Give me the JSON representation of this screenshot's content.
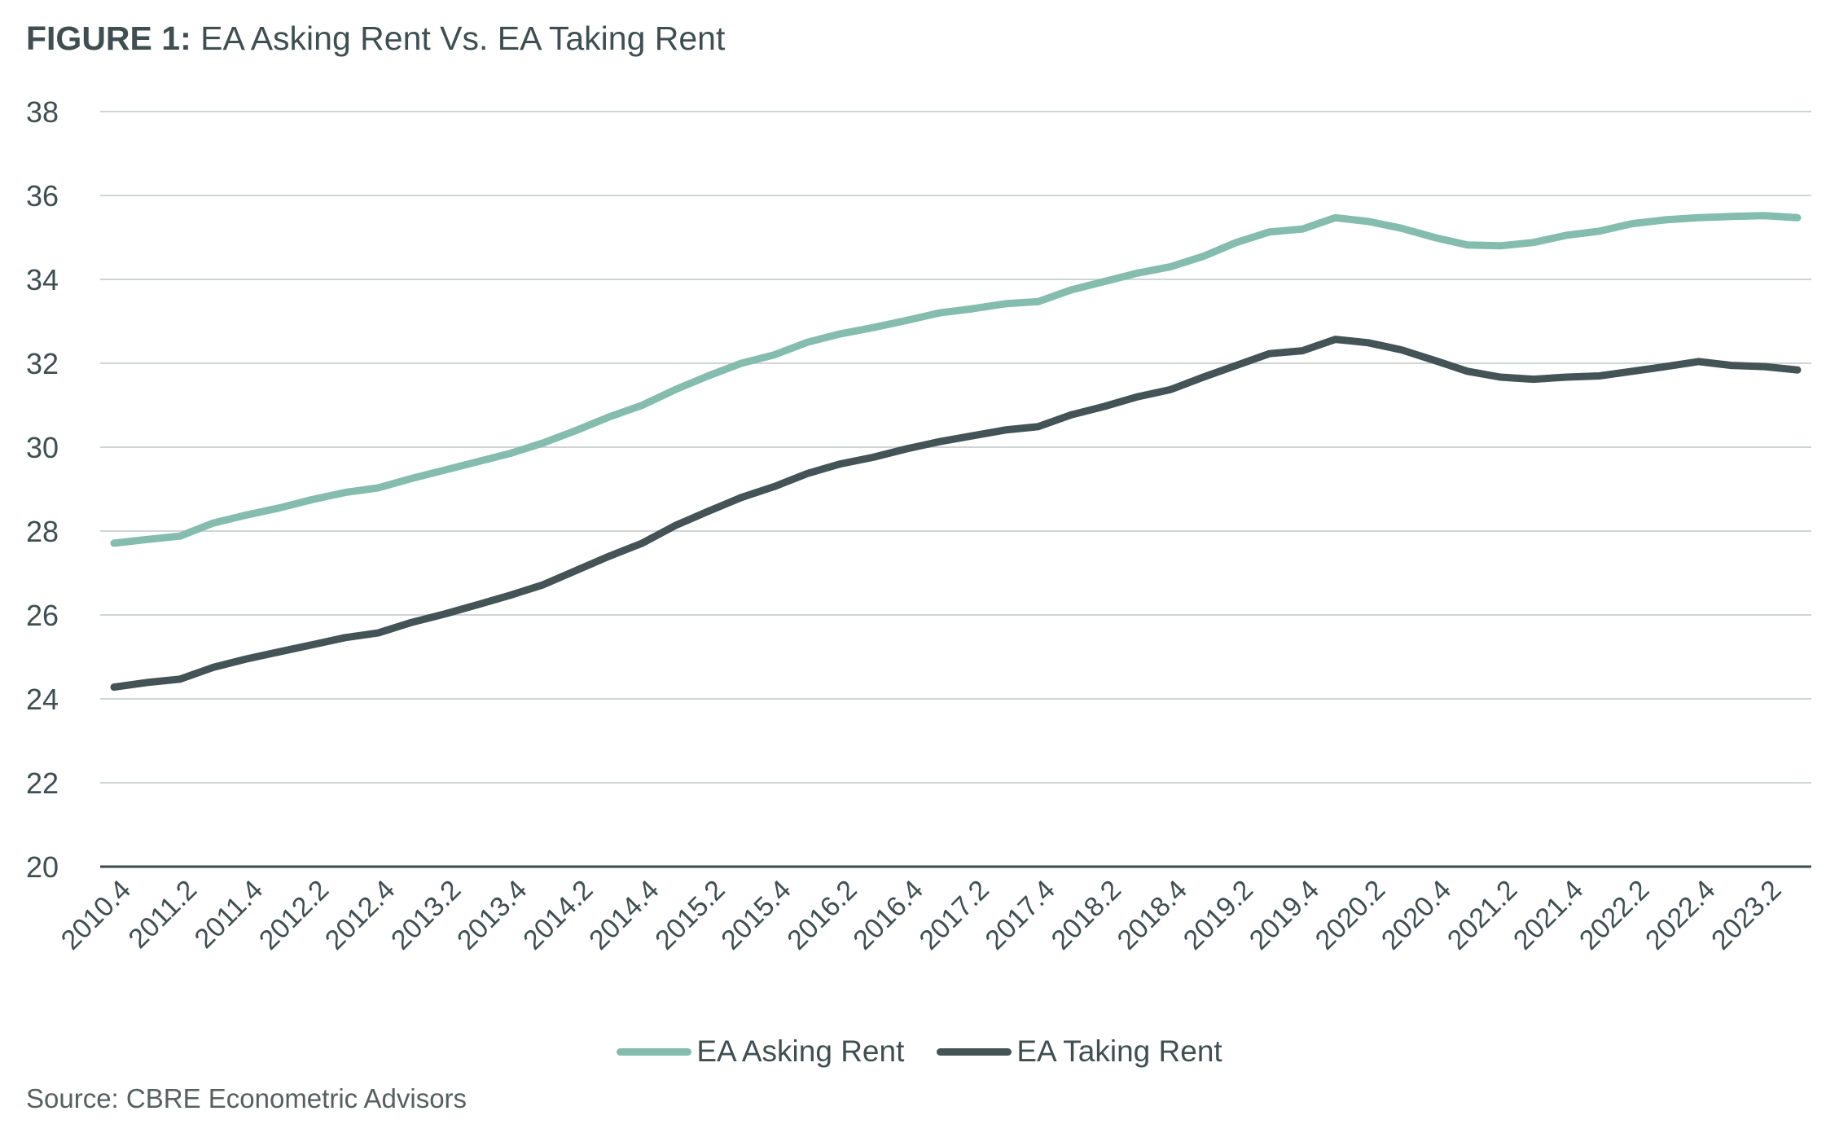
{
  "title": {
    "prefix": "FIGURE 1:",
    "text": " EA Asking Rent Vs. EA Taking Rent"
  },
  "source": "Source: CBRE Econometric Advisors",
  "colors": {
    "asking": "#84bcad",
    "taking": "#435356",
    "grid": "#d0d4d5",
    "axis": "#3b4a4c"
  },
  "chart_data": {
    "type": "line",
    "title": "EA Asking Rent Vs. EA Taking Rent",
    "ylim": [
      20,
      38
    ],
    "yticks": [
      20,
      22,
      24,
      26,
      28,
      30,
      32,
      34,
      36,
      38
    ],
    "grid": true,
    "legend_position": "bottom",
    "x": [
      "2010.4",
      "2011.1",
      "2011.2",
      "2011.3",
      "2011.4",
      "2012.1",
      "2012.2",
      "2012.3",
      "2012.4",
      "2013.1",
      "2013.2",
      "2013.3",
      "2013.4",
      "2014.1",
      "2014.2",
      "2014.3",
      "2014.4",
      "2015.1",
      "2015.2",
      "2015.3",
      "2015.4",
      "2016.1",
      "2016.2",
      "2016.3",
      "2016.4",
      "2017.1",
      "2017.2",
      "2017.3",
      "2017.4",
      "2018.1",
      "2018.2",
      "2018.3",
      "2018.4",
      "2019.1",
      "2019.2",
      "2019.3",
      "2019.4",
      "2020.1",
      "2020.2",
      "2020.3",
      "2020.4",
      "2021.1",
      "2021.2",
      "2021.3",
      "2021.4",
      "2022.1",
      "2022.2",
      "2022.3",
      "2022.4",
      "2023.1",
      "2023.2",
      "2023.3"
    ],
    "xtick_labels": [
      "2010.4",
      "2011.2",
      "2011.4",
      "2012.2",
      "2012.4",
      "2013.2",
      "2013.4",
      "2014.2",
      "2014.4",
      "2015.2",
      "2015.4",
      "2016.2",
      "2016.4",
      "2017.2",
      "2017.4",
      "2018.2",
      "2018.4",
      "2019.2",
      "2019.4",
      "2020.2",
      "2020.4",
      "2021.2",
      "2021.4",
      "2022.2",
      "2022.4",
      "2023.2"
    ],
    "series": [
      {
        "name": "EA Asking Rent",
        "values": [
          27.71,
          27.8,
          27.88,
          28.19,
          28.38,
          28.55,
          28.75,
          28.92,
          29.03,
          29.25,
          29.45,
          29.65,
          29.85,
          30.1,
          30.4,
          30.72,
          31.0,
          31.37,
          31.7,
          32.0,
          32.2,
          32.5,
          32.7,
          32.85,
          33.02,
          33.2,
          33.3,
          33.42,
          33.47,
          33.75,
          33.95,
          34.15,
          34.3,
          34.55,
          34.88,
          35.13,
          35.2,
          35.47,
          35.38,
          35.22,
          35.0,
          34.82,
          34.8,
          34.88,
          35.05,
          35.15,
          35.33,
          35.42,
          35.47,
          35.5,
          35.52,
          35.47
        ]
      },
      {
        "name": "EA Taking Rent",
        "values": [
          24.28,
          24.39,
          24.47,
          24.75,
          24.95,
          25.12,
          25.29,
          25.46,
          25.57,
          25.82,
          26.02,
          26.24,
          26.47,
          26.72,
          27.06,
          27.4,
          27.71,
          28.13,
          28.47,
          28.8,
          29.06,
          29.37,
          29.6,
          29.76,
          29.96,
          30.13,
          30.27,
          30.41,
          30.49,
          30.77,
          30.97,
          31.2,
          31.37,
          31.67,
          31.95,
          32.23,
          32.3,
          32.57,
          32.49,
          32.32,
          32.07,
          31.81,
          31.67,
          31.62,
          31.67,
          31.7,
          31.81,
          31.92,
          32.04,
          31.95,
          31.92,
          31.84
        ]
      }
    ]
  }
}
